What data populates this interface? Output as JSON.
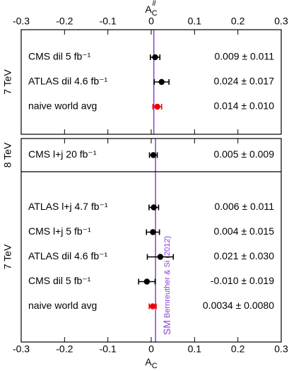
{
  "chart_data": [
    {
      "type": "forest",
      "x_label": "A",
      "x_label_sub": "C",
      "x_label_sup": "ll",
      "xlim": [
        -0.3,
        0.3
      ],
      "xticks": [
        -0.3,
        -0.2,
        -0.1,
        0,
        0.1,
        0.2,
        0.3
      ],
      "reference": {
        "value": 0.006,
        "color": "#8a3fd0"
      },
      "sections": [
        {
          "label": "7 TeV",
          "rows": [
            {
              "label": "CMS dil 5 fb⁻¹",
              "value": 0.009,
              "error": 0.011,
              "value_label": "0.009 ± 0.011",
              "color": "#000000"
            },
            {
              "label": "ATLAS dil 4.6 fb⁻¹",
              "value": 0.024,
              "error": 0.017,
              "value_label": "0.024 ± 0.017",
              "color": "#000000"
            },
            {
              "label": "naive world avg",
              "value": 0.014,
              "error": 0.01,
              "value_label": "0.014 ± 0.010",
              "color": "#ee0000"
            }
          ]
        }
      ]
    },
    {
      "type": "forest",
      "x_label": "A",
      "x_label_sub": "C",
      "xlim": [
        -0.3,
        0.3
      ],
      "xticks": [
        -0.3,
        -0.2,
        -0.1,
        0,
        0.1,
        0.2,
        0.3
      ],
      "reference": {
        "value": 0.01,
        "label": "SM",
        "sublabel": "Bernreuther & Si (2012)",
        "color": "#8a3fd0"
      },
      "sections": [
        {
          "label": "8 TeV",
          "rows": [
            {
              "label": "CMS l+j 20 fb⁻¹",
              "value": 0.005,
              "error": 0.009,
              "value_label": "0.005 ± 0.009",
              "color": "#000000"
            }
          ]
        },
        {
          "label": "7 TeV",
          "rows": [
            {
              "label": "ATLAS l+j 4.7 fb⁻¹",
              "value": 0.006,
              "error": 0.011,
              "value_label": "0.006 ± 0.011",
              "color": "#000000"
            },
            {
              "label": "CMS l+j 5 fb⁻¹",
              "value": 0.004,
              "error": 0.015,
              "value_label": "0.004 ± 0.015",
              "color": "#000000"
            },
            {
              "label": "ATLAS dil 4.6 fb⁻¹",
              "value": 0.021,
              "error": 0.03,
              "value_label": "0.021 ± 0.030",
              "color": "#000000"
            },
            {
              "label": "CMS dil 5 fb⁻¹",
              "value": -0.01,
              "error": 0.019,
              "value_label": "-0.010 ± 0.019",
              "color": "#000000"
            },
            {
              "label": "naive world avg",
              "value": 0.0034,
              "error": 0.008,
              "value_label": "0.0034 ± 0.0080",
              "color": "#ee0000"
            }
          ]
        }
      ]
    }
  ]
}
